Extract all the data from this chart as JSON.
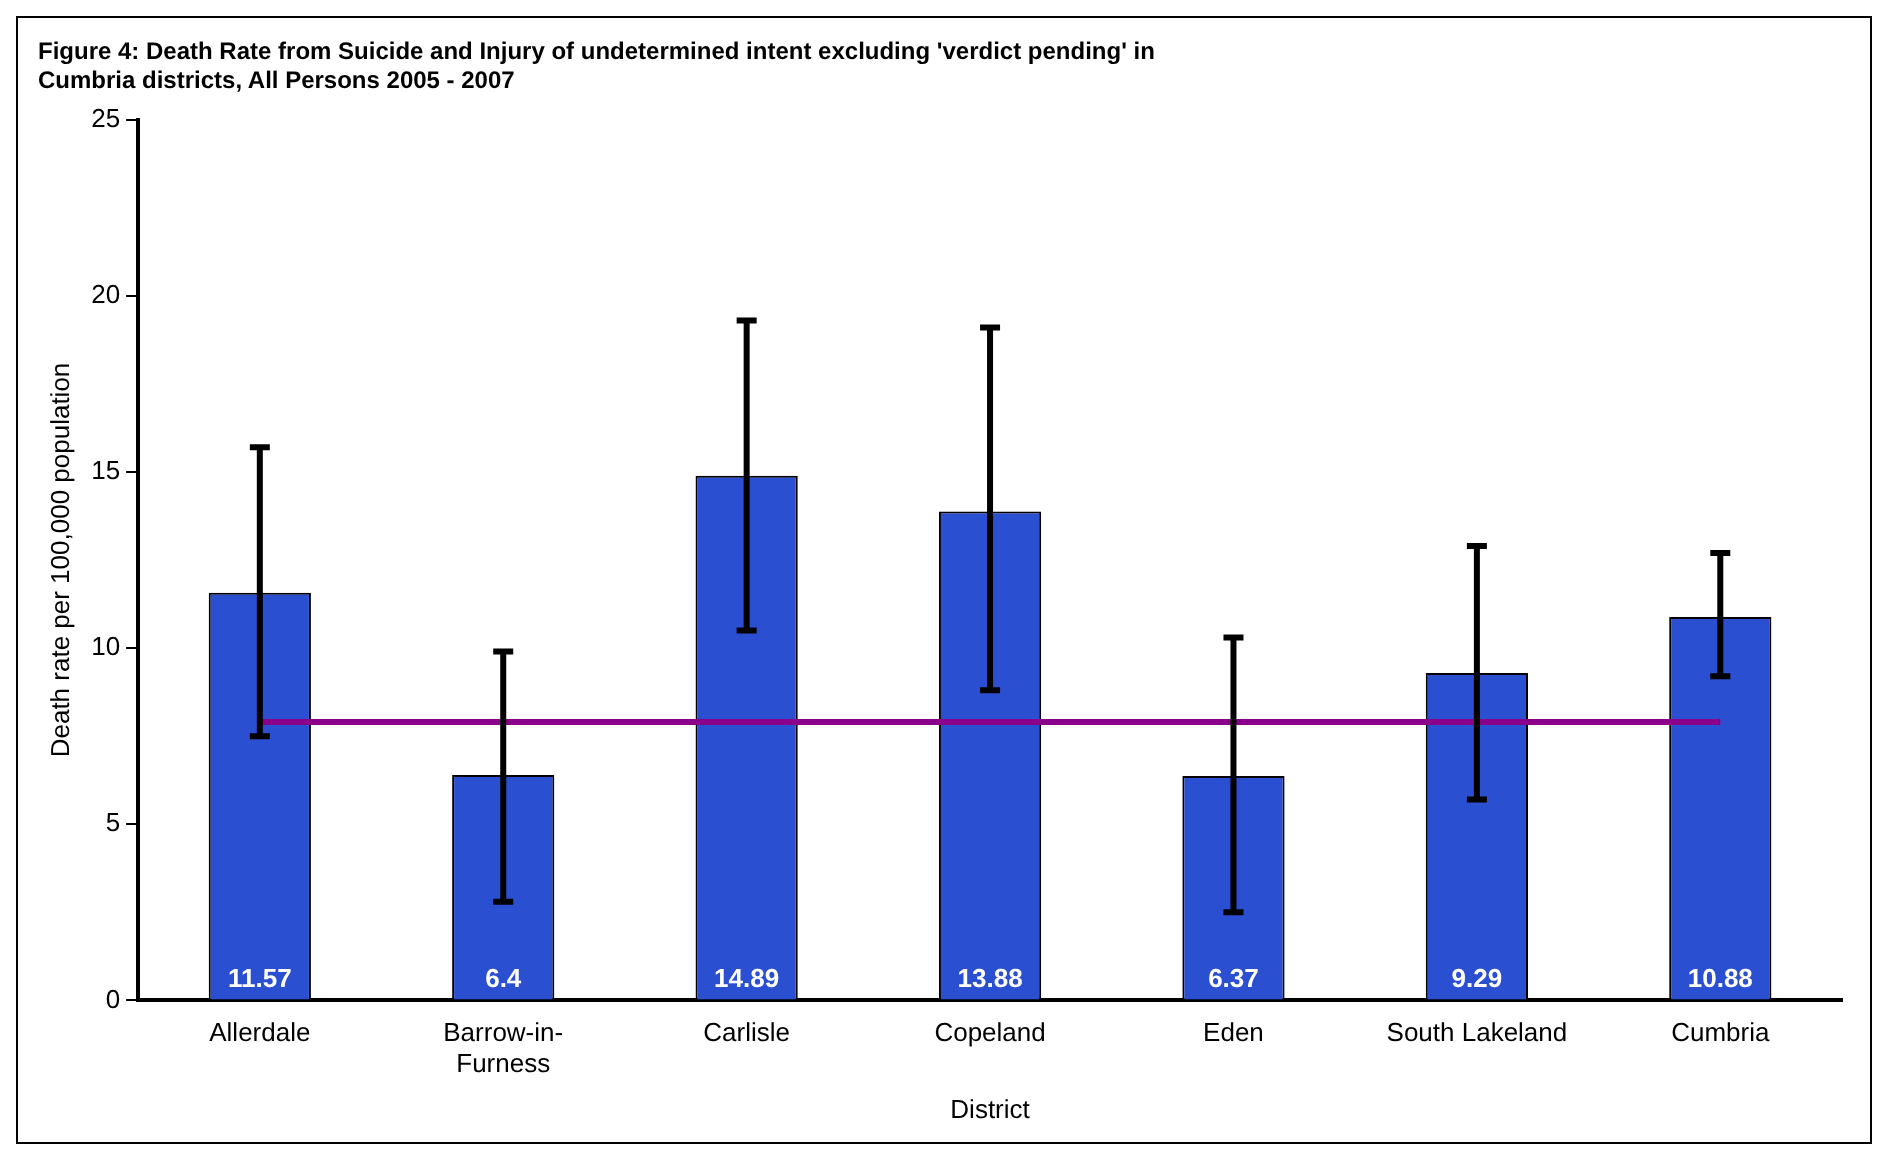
{
  "chart_data": {
    "type": "bar",
    "title": "Figure 4: Death Rate from Suicide and Injury of undetermined intent excluding 'verdict pending' in Cumbria districts, All Persons 2005 - 2007",
    "xlabel": "District",
    "ylabel": "Death rate per 100,000 population",
    "categories": [
      "Allerdale",
      "Barrow-in-Furness",
      "Carlisle",
      "Copeland",
      "Eden",
      "South Lakeland",
      "Cumbria"
    ],
    "series": [
      {
        "color": "#2a4fd0",
        "values": [
          11.57,
          6.4,
          14.89,
          13.88,
          6.37,
          9.29,
          10.88
        ],
        "value_labels": [
          "11.57",
          "6.4",
          "14.89",
          "13.88",
          "6.37",
          "9.29",
          "10.88"
        ],
        "errors": [
          [
            7.5,
            15.7
          ],
          [
            2.8,
            9.9
          ],
          [
            10.5,
            19.3
          ],
          [
            8.8,
            19.1
          ],
          [
            2.5,
            10.3
          ],
          [
            5.7,
            12.9
          ],
          [
            9.2,
            12.7
          ]
        ]
      },
      {
        "type": "line",
        "color": "#8b008b",
        "values": [
          7.9,
          7.9,
          7.9,
          7.9,
          7.9,
          7.9,
          7.9
        ]
      }
    ],
    "ylim": [
      0,
      25
    ],
    "yticks": [
      0,
      5,
      10,
      15,
      20,
      25
    ],
    "grid": false,
    "legend": false
  }
}
